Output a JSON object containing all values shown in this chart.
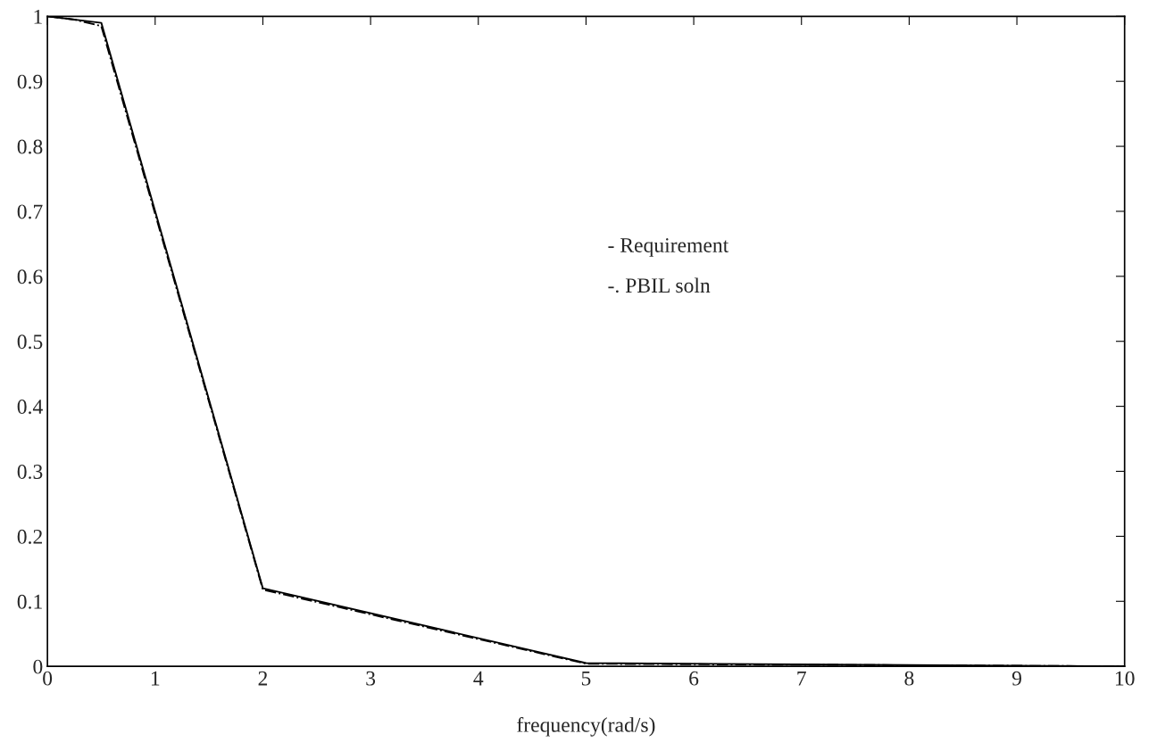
{
  "chart_data": {
    "type": "line",
    "xlabel": "frequency(rad/s)",
    "series": [
      {
        "color": "#000000",
        "line_style": "solid",
        "x": [
          0,
          0.5,
          2,
          5,
          10
        ],
        "values": [
          1,
          0.99,
          0.12,
          0.005,
          0
        ]
      },
      {
        "color": "#000000",
        "line_style": "dashdot",
        "x": [
          0,
          0.25,
          0.5,
          2,
          5,
          10
        ],
        "values": [
          1,
          0.995,
          0.985,
          0.118,
          0.004,
          0
        ]
      }
    ],
    "annotations": [
      "- Requirement",
      "-. PBIL soln"
    ],
    "xlim": [
      0,
      10
    ],
    "ylim": [
      0,
      1
    ],
    "xticks": [
      0,
      1,
      2,
      3,
      4,
      5,
      6,
      7,
      8,
      9,
      10
    ],
    "yticks": [
      0,
      0.1,
      0.2,
      0.3,
      0.4,
      0.5,
      0.6,
      0.7,
      0.8,
      0.9,
      1
    ],
    "grid": false,
    "legend": false
  }
}
